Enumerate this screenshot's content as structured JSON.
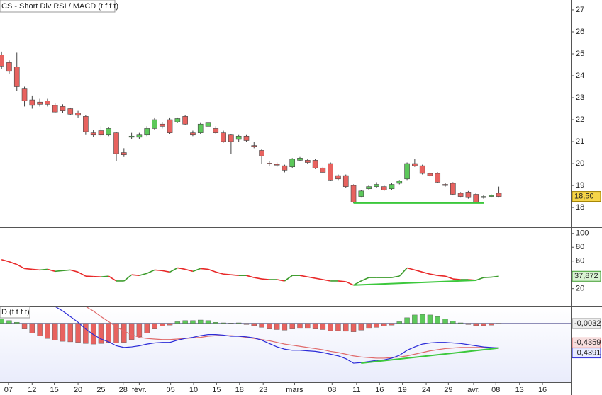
{
  "chart_data": [
    {
      "type": "candlestick",
      "title": "CS - Short Div RSI / MACD (t f f t)",
      "x": [
        0,
        1,
        2,
        3,
        4,
        5,
        6,
        7,
        8,
        9,
        10,
        11,
        12,
        13,
        14,
        15,
        16,
        17,
        18,
        19,
        20,
        21,
        22,
        23,
        24,
        25,
        26,
        27,
        28,
        29,
        30,
        31,
        32,
        33,
        34,
        35,
        36,
        37,
        38,
        39,
        40,
        41,
        42,
        43,
        44,
        45,
        46,
        47,
        48,
        49,
        50,
        51,
        52,
        53,
        54,
        55,
        56,
        57,
        58,
        59,
        60,
        61,
        62,
        63,
        64,
        65
      ],
      "open": [
        24.95,
        24.6,
        24.4,
        23.4,
        22.9,
        22.8,
        22.85,
        22.65,
        22.6,
        22.5,
        22.3,
        22.15,
        21.4,
        21.5,
        21.3,
        21.4,
        20.5,
        21.2,
        21.2,
        21.3,
        21.6,
        21.8,
        22.0,
        21.9,
        22.15,
        21.4,
        21.4,
        21.7,
        21.6,
        21.4,
        21.3,
        21.1,
        21.25,
        20.82,
        20.6,
        20.02,
        19.97,
        19.9,
        19.85,
        20.15,
        20.15,
        20.15,
        19.8,
        20.0,
        19.45,
        19.45,
        19.0,
        18.5,
        18.85,
        18.95,
        18.95,
        18.85,
        19.1,
        19.3,
        20.0,
        19.9,
        19.55,
        19.55,
        19.05,
        19.1,
        18.65,
        18.7,
        18.6,
        18.45,
        18.5,
        18.65
      ],
      "high": [
        25.1,
        24.7,
        25.05,
        23.5,
        23.1,
        22.95,
        22.95,
        22.75,
        22.7,
        22.55,
        22.4,
        22.2,
        21.55,
        21.7,
        21.65,
        21.45,
        20.7,
        21.4,
        21.4,
        21.7,
        22.1,
        21.9,
        22.1,
        22.1,
        22.2,
        21.5,
        21.85,
        21.9,
        21.7,
        21.5,
        21.35,
        21.3,
        21.3,
        21.0,
        20.65,
        20.1,
        20.05,
        19.95,
        20.25,
        20.3,
        20.2,
        20.2,
        19.85,
        20.05,
        19.5,
        19.5,
        19.05,
        18.8,
        19.0,
        19.15,
        19.0,
        19.1,
        19.25,
        20.05,
        20.2,
        19.95,
        19.6,
        19.6,
        19.1,
        19.15,
        18.7,
        18.75,
        18.65,
        18.55,
        18.6,
        18.95
      ],
      "low": [
        24.3,
        24.1,
        23.3,
        22.6,
        22.5,
        22.6,
        22.6,
        22.3,
        22.3,
        22.2,
        22.1,
        21.3,
        21.2,
        21.2,
        21.25,
        20.1,
        20.3,
        21.1,
        21.1,
        21.25,
        21.55,
        21.6,
        21.35,
        21.85,
        21.75,
        21.25,
        21.35,
        21.65,
        21.35,
        20.95,
        20.45,
        21.0,
        21.0,
        20.7,
        20.0,
        19.9,
        19.85,
        19.6,
        19.8,
        20.1,
        20.0,
        19.75,
        19.55,
        19.2,
        19.25,
        18.9,
        18.2,
        18.45,
        18.8,
        18.9,
        18.75,
        18.8,
        19.05,
        19.25,
        19.85,
        19.5,
        19.4,
        19.1,
        18.95,
        18.55,
        18.45,
        18.4,
        18.2,
        18.4,
        18.45,
        18.45
      ],
      "close": [
        24.44,
        24.2,
        23.5,
        22.85,
        22.65,
        22.7,
        22.7,
        22.35,
        22.4,
        22.25,
        22.2,
        21.45,
        21.3,
        21.3,
        21.6,
        20.45,
        20.4,
        21.25,
        21.3,
        21.6,
        22.0,
        21.7,
        21.4,
        22.05,
        21.8,
        21.3,
        21.8,
        21.85,
        21.4,
        21.0,
        21.0,
        21.25,
        21.05,
        20.78,
        20.35,
        19.98,
        19.93,
        19.7,
        20.2,
        20.25,
        20.05,
        19.8,
        19.6,
        19.25,
        19.3,
        18.95,
        18.25,
        18.75,
        18.95,
        19.05,
        18.8,
        19.05,
        19.2,
        20.0,
        19.9,
        19.55,
        19.45,
        19.15,
        19.0,
        18.6,
        18.5,
        18.45,
        18.25,
        18.5,
        18.55,
        18.5
      ],
      "up_color": "#5cc85a",
      "down_color": "#e8625f",
      "last_label": "18,50",
      "trendline": {
        "x": [
          46,
          63
        ],
        "y": [
          18.2,
          18.2
        ],
        "color": "#3cc83c"
      },
      "xlim": [
        -0.2,
        74.4
      ],
      "ylim": [
        17.1,
        27.45
      ],
      "yticks": [
        18,
        19,
        20,
        21,
        22,
        23,
        24,
        25,
        26,
        27
      ]
    },
    {
      "type": "line",
      "values": [
        62,
        59,
        55,
        49,
        48,
        47,
        48,
        45,
        46,
        47,
        44,
        38,
        37.5,
        37,
        38,
        31,
        31,
        40,
        39,
        42,
        47,
        46,
        44,
        50,
        48,
        45,
        49,
        48,
        44,
        41,
        40,
        39,
        39,
        36,
        34,
        33,
        33,
        31,
        39,
        39,
        37,
        35,
        33,
        31,
        31,
        30,
        25,
        31,
        36,
        36,
        36,
        36,
        38,
        50,
        47,
        44,
        41,
        39,
        38,
        34,
        33,
        33,
        32,
        36,
        36.5,
        37.872
      ],
      "up_color": "#3c9c2c",
      "down_color": "#e82828",
      "last_label": "37,872",
      "trendline": {
        "x": [
          46,
          62
        ],
        "y": [
          25,
          32
        ],
        "color": "#3cc83c"
      },
      "ylim": [
        -5,
        108
      ],
      "yticks": [
        20,
        60,
        80,
        100
      ]
    },
    {
      "type": "macd",
      "title": "D (f t f t)",
      "histogram": [
        0.08,
        0.05,
        0.02,
        -0.1,
        -0.17,
        -0.22,
        -0.27,
        -0.3,
        -0.32,
        -0.33,
        -0.34,
        -0.36,
        -0.37,
        -0.36,
        -0.34,
        -0.35,
        -0.34,
        -0.29,
        -0.24,
        -0.17,
        -0.1,
        -0.05,
        -0.03,
        0.03,
        0.05,
        0.05,
        0.06,
        0.05,
        0.02,
        0.01,
        0.005,
        0.01,
        -0.02,
        -0.04,
        -0.07,
        -0.1,
        -0.11,
        -0.12,
        -0.1,
        -0.09,
        -0.09,
        -0.1,
        -0.11,
        -0.13,
        -0.13,
        -0.14,
        -0.15,
        -0.12,
        -0.09,
        -0.07,
        -0.05,
        -0.03,
        0.03,
        0.1,
        0.15,
        0.16,
        0.15,
        0.12,
        0.08,
        0.04,
        0.01,
        -0.02,
        -0.04,
        -0.04,
        -0.03,
        -0.0032
      ],
      "macd": [
        null,
        null,
        null,
        null,
        null,
        null,
        null,
        0.3,
        0.22,
        0.12,
        0.02,
        -0.1,
        -0.2,
        -0.28,
        -0.33,
        -0.4,
        -0.43,
        -0.42,
        -0.4,
        -0.37,
        -0.35,
        -0.34,
        -0.34,
        -0.3,
        -0.27,
        -0.25,
        -0.22,
        -0.2,
        -0.2,
        -0.21,
        -0.23,
        -0.23,
        -0.24,
        -0.26,
        -0.3,
        -0.36,
        -0.42,
        -0.46,
        -0.48,
        -0.48,
        -0.49,
        -0.5,
        -0.52,
        -0.55,
        -0.58,
        -0.63,
        -0.71,
        -0.7,
        -0.68,
        -0.66,
        -0.65,
        -0.62,
        -0.57,
        -0.48,
        -0.42,
        -0.37,
        -0.35,
        -0.34,
        -0.34,
        -0.35,
        -0.36,
        -0.38,
        -0.4,
        -0.42,
        -0.43,
        -0.4391
      ],
      "signal": [
        null,
        null,
        null,
        null,
        null,
        null,
        null,
        null,
        null,
        null,
        null,
        0.3,
        0.22,
        0.12,
        0.03,
        -0.06,
        -0.14,
        -0.2,
        -0.25,
        -0.27,
        -0.28,
        -0.29,
        -0.29,
        -0.28,
        -0.27,
        -0.26,
        -0.25,
        -0.23,
        -0.22,
        -0.22,
        -0.22,
        -0.23,
        -0.25,
        -0.27,
        -0.29,
        -0.31,
        -0.34,
        -0.37,
        -0.39,
        -0.41,
        -0.43,
        -0.45,
        -0.47,
        -0.5,
        -0.52,
        -0.55,
        -0.58,
        -0.6,
        -0.61,
        -0.62,
        -0.62,
        -0.61,
        -0.6,
        -0.58,
        -0.55,
        -0.52,
        -0.49,
        -0.47,
        -0.45,
        -0.44,
        -0.43,
        -0.43,
        -0.43,
        -0.43,
        -0.435,
        -0.4359
      ],
      "histogram_label": "-0,0032",
      "macd_label": "-0,4391",
      "signal_label": "-0,4359",
      "macd_color": "#2b2bd8",
      "signal_color": "#e06a6a",
      "up_color": "#5cc85a",
      "down_color": "#e8625f",
      "trendline": {
        "x": [
          47,
          65
        ],
        "y": [
          -0.71,
          -0.44
        ],
        "color": "#3cc83c"
      },
      "ylim": [
        -1.05,
        0.3
      ],
      "xticks": [
        {
          "value": 0.9,
          "label": "07"
        },
        {
          "value": 4.0,
          "label": "12"
        },
        {
          "value": 6.9,
          "label": "15"
        },
        {
          "value": 10.0,
          "label": "20"
        },
        {
          "value": 13.0,
          "label": "25"
        },
        {
          "value": 15.9,
          "label": "28"
        },
        {
          "value": 18.0,
          "label": "févr."
        },
        {
          "value": 22.1,
          "label": "05"
        },
        {
          "value": 25.1,
          "label": "10"
        },
        {
          "value": 28.1,
          "label": "15"
        },
        {
          "value": 31.1,
          "label": "18"
        },
        {
          "value": 34.2,
          "label": "23"
        },
        {
          "value": 38.3,
          "label": "mars"
        },
        {
          "value": 43.2,
          "label": "08"
        },
        {
          "value": 46.4,
          "label": "11"
        },
        {
          "value": 49.4,
          "label": "16"
        },
        {
          "value": 52.4,
          "label": "19"
        },
        {
          "value": 55.5,
          "label": "24"
        },
        {
          "value": 58.4,
          "label": "29"
        },
        {
          "value": 61.7,
          "label": "avr."
        },
        {
          "value": 64.6,
          "label": "08"
        },
        {
          "value": 67.7,
          "label": "13"
        },
        {
          "value": 70.7,
          "label": "16"
        }
      ]
    }
  ]
}
